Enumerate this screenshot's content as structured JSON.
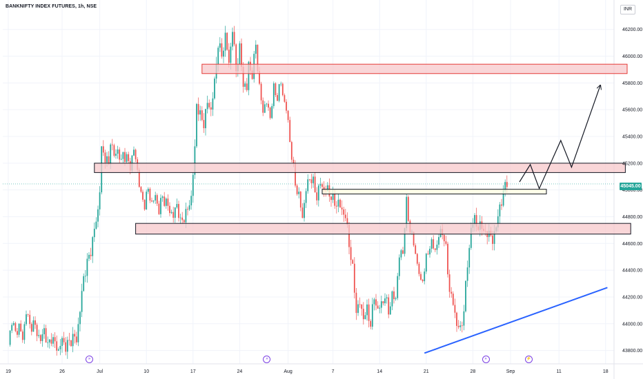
{
  "chart_data": {
    "type": "candlestick",
    "title": "BANKNIFTY INDEX FUTURES, 1h, NSE",
    "currency": "INR",
    "last_price_label": "45045.00",
    "ylim": [
      43700,
      46420
    ],
    "y_ticks": [
      {
        "value": 46200,
        "label": "46200.00"
      },
      {
        "value": 46000,
        "label": "46000.00"
      },
      {
        "value": 45800,
        "label": "45800.00"
      },
      {
        "value": 45600,
        "label": "45600.00"
      },
      {
        "value": 45400,
        "label": "45400.00"
      },
      {
        "value": 45200,
        "label": "45200.00"
      },
      {
        "value": 45000,
        "label": "45000.00"
      },
      {
        "value": 44800,
        "label": "44800.00"
      },
      {
        "value": 44600,
        "label": "44600.00"
      },
      {
        "value": 44400,
        "label": "44400.00"
      },
      {
        "value": 44200,
        "label": "44200.00"
      },
      {
        "value": 44000,
        "label": "44000.00"
      },
      {
        "value": 43800,
        "label": "43800.00"
      }
    ],
    "x_ticks": [
      {
        "idx": 0,
        "label": "19"
      },
      {
        "idx": 30,
        "label": "26"
      },
      {
        "idx": 51,
        "label": "Jul"
      },
      {
        "idx": 77,
        "label": "10"
      },
      {
        "idx": 103,
        "label": "17"
      },
      {
        "idx": 129,
        "label": "24"
      },
      {
        "idx": 156,
        "label": "Aug"
      },
      {
        "idx": 181,
        "label": "7"
      },
      {
        "idx": 207,
        "label": "14"
      },
      {
        "idx": 233,
        "label": "21"
      },
      {
        "idx": 259,
        "label": "28"
      },
      {
        "idx": 280,
        "label": "Sep"
      },
      {
        "idx": 307,
        "label": "11"
      },
      {
        "idx": 333,
        "label": "18"
      }
    ],
    "anchors": [
      [
        0,
        43820
      ],
      [
        2,
        44040
      ],
      [
        4,
        43920
      ],
      [
        6,
        43990
      ],
      [
        8,
        43880
      ],
      [
        10,
        44100
      ],
      [
        12,
        43980
      ],
      [
        14,
        44000
      ],
      [
        16,
        43940
      ],
      [
        18,
        43870
      ],
      [
        20,
        43960
      ],
      [
        22,
        43830
      ],
      [
        24,
        43900
      ],
      [
        26,
        43850
      ],
      [
        28,
        43800
      ],
      [
        30,
        43880
      ],
      [
        32,
        43830
      ],
      [
        34,
        43860
      ],
      [
        36,
        43900
      ],
      [
        38,
        43880
      ],
      [
        40,
        44100
      ],
      [
        42,
        44350
      ],
      [
        44,
        44450
      ],
      [
        46,
        44550
      ],
      [
        48,
        44700
      ],
      [
        50,
        44850
      ],
      [
        51,
        45000
      ],
      [
        52,
        45300
      ],
      [
        54,
        45250
      ],
      [
        56,
        45180
      ],
      [
        57,
        45380
      ],
      [
        59,
        45250
      ],
      [
        61,
        45300
      ],
      [
        63,
        45200
      ],
      [
        64,
        45280
      ],
      [
        66,
        45230
      ],
      [
        68,
        45180
      ],
      [
        70,
        45300
      ],
      [
        72,
        45150
      ],
      [
        74,
        44950
      ],
      [
        76,
        44900
      ],
      [
        78,
        45000
      ],
      [
        80,
        44900
      ],
      [
        82,
        44950
      ],
      [
        84,
        44850
      ],
      [
        86,
        44950
      ],
      [
        88,
        44900
      ],
      [
        90,
        44850
      ],
      [
        92,
        44800
      ],
      [
        94,
        44900
      ],
      [
        96,
        44750
      ],
      [
        98,
        44800
      ],
      [
        100,
        44850
      ],
      [
        102,
        44950
      ],
      [
        104,
        45300
      ],
      [
        105,
        45650
      ],
      [
        107,
        45550
      ],
      [
        109,
        45500
      ],
      [
        111,
        45650
      ],
      [
        113,
        45600
      ],
      [
        115,
        45800
      ],
      [
        117,
        46100
      ],
      [
        119,
        46000
      ],
      [
        121,
        46150
      ],
      [
        123,
        45950
      ],
      [
        125,
        46200
      ],
      [
        127,
        45900
      ],
      [
        129,
        46050
      ],
      [
        131,
        45800
      ],
      [
        133,
        45750
      ],
      [
        134,
        45950
      ],
      [
        136,
        45850
      ],
      [
        138,
        46100
      ],
      [
        140,
        45750
      ],
      [
        142,
        45600
      ],
      [
        144,
        45650
      ],
      [
        146,
        45550
      ],
      [
        148,
        45750
      ],
      [
        150,
        45700
      ],
      [
        152,
        45800
      ],
      [
        154,
        45650
      ],
      [
        155,
        45600
      ],
      [
        156,
        45500
      ],
      [
        158,
        45250
      ],
      [
        160,
        45050
      ],
      [
        162,
        44950
      ],
      [
        164,
        44800
      ],
      [
        166,
        45000
      ],
      [
        168,
        45100
      ],
      [
        170,
        45050
      ],
      [
        172,
        44950
      ],
      [
        174,
        45050
      ],
      [
        176,
        45000
      ],
      [
        178,
        45000
      ],
      [
        180,
        44950
      ],
      [
        182,
        44900
      ],
      [
        184,
        44900
      ],
      [
        186,
        44850
      ],
      [
        188,
        44800
      ],
      [
        190,
        44600
      ],
      [
        192,
        44400
      ],
      [
        194,
        44100
      ],
      [
        196,
        44150
      ],
      [
        198,
        44050
      ],
      [
        200,
        44100
      ],
      [
        202,
        44000
      ],
      [
        204,
        44200
      ],
      [
        206,
        44100
      ],
      [
        208,
        44150
      ],
      [
        210,
        44200
      ],
      [
        212,
        44100
      ],
      [
        214,
        44200
      ],
      [
        216,
        44200
      ],
      [
        218,
        44500
      ],
      [
        220,
        44550
      ],
      [
        222,
        44900
      ],
      [
        224,
        44700
      ],
      [
        226,
        44600
      ],
      [
        228,
        44450
      ],
      [
        230,
        44300
      ],
      [
        232,
        44400
      ],
      [
        234,
        44550
      ],
      [
        236,
        44600
      ],
      [
        238,
        44550
      ],
      [
        240,
        44650
      ],
      [
        242,
        44700
      ],
      [
        244,
        44550
      ],
      [
        246,
        44250
      ],
      [
        248,
        44150
      ],
      [
        250,
        44000
      ],
      [
        252,
        43950
      ],
      [
        254,
        44100
      ],
      [
        256,
        44450
      ],
      [
        258,
        44700
      ],
      [
        260,
        44800
      ],
      [
        262,
        44700
      ],
      [
        264,
        44750
      ],
      [
        266,
        44650
      ],
      [
        268,
        44700
      ],
      [
        270,
        44600
      ],
      [
        272,
        44750
      ],
      [
        274,
        44850
      ],
      [
        276,
        45000
      ],
      [
        278,
        45045
      ]
    ],
    "blue_trendline": [
      [
        232,
        43780
      ],
      [
        334,
        44270
      ]
    ],
    "overlays": {
      "upper_red_zone": {
        "x_start": 108,
        "x_end": 345,
        "y_low": 45870,
        "y_high": 45940
      },
      "mid_red_zone": {
        "x_start": 48,
        "x_end": 344,
        "y_low": 45130,
        "y_high": 45200
      },
      "yellow_zone": {
        "x_start": 175,
        "x_end": 300,
        "y_low": 44970,
        "y_high": 45005
      },
      "lower_red_zone": {
        "x_start": 71,
        "x_end": 347,
        "y_low": 44670,
        "y_high": 44750
      },
      "projection_path": [
        [
          285,
          45060
        ],
        [
          291,
          45190
        ],
        [
          296,
          45010
        ],
        [
          308,
          45370
        ],
        [
          314,
          45170
        ],
        [
          330,
          45780
        ]
      ]
    },
    "event_icon_idx": [
      45,
      144,
      266,
      290
    ],
    "colors": {
      "up": "#26a69a",
      "down": "#ef5350",
      "zone_fill": "#f7c8cb",
      "zone_border": "#131722",
      "upper_zone_border": "#e53935",
      "yellow_fill": "#fffde0",
      "trendline": "#2962ff",
      "projection": "#131722"
    }
  }
}
